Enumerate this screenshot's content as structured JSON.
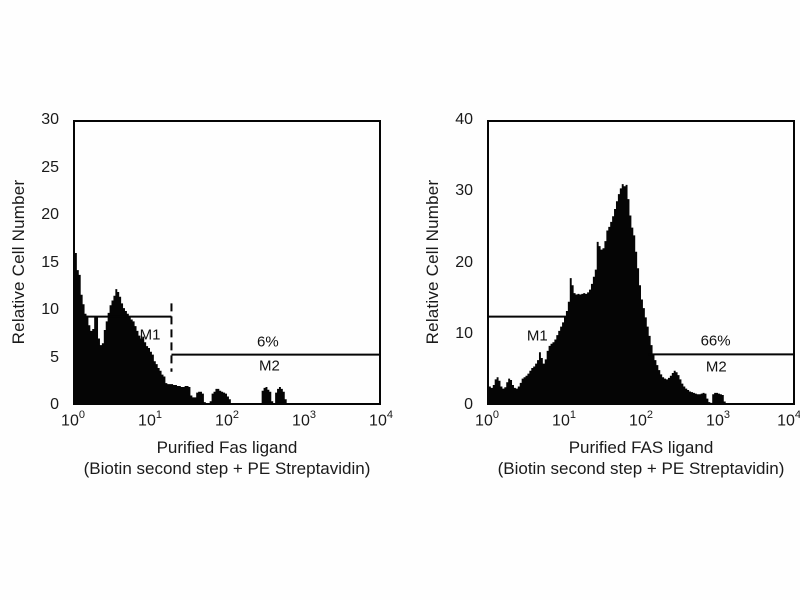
{
  "figure": {
    "background": "#ffffff",
    "ink": "#050505",
    "description": "Two flow cytometry histograms of purified Fas ligand staining (biotin second step + PE streptavidin), with M1/M2 gates"
  },
  "chart_data": [
    {
      "type": "histogram",
      "panel": "left",
      "ylabel": "Relative Cell Number",
      "xlabel_line1": "Purified Fas ligand",
      "xlabel_line2": "(Biotin second step + PE Streptavidin)",
      "x_scale": "log10",
      "x_range": [
        1,
        10000
      ],
      "ylim": [
        0,
        30
      ],
      "grid": false,
      "y_ticks": [
        "30",
        "25",
        "20",
        "15",
        "10",
        "5",
        "0"
      ],
      "x_ticks": [
        {
          "base": "10",
          "exp": "0"
        },
        {
          "base": "10",
          "exp": "1"
        },
        {
          "base": "10",
          "exp": "2"
        },
        {
          "base": "10",
          "exp": "3"
        },
        {
          "base": "10",
          "exp": "4"
        }
      ],
      "bins_per_decade": 40,
      "values": [
        25,
        16,
        14.2,
        13.7,
        11.6,
        10.6,
        9.6,
        9.4,
        8.4,
        7.8,
        8.0,
        9.3,
        9.3,
        7.0,
        6.3,
        6.5,
        7.9,
        8.8,
        9.7,
        10.5,
        11.0,
        11.5,
        12.2,
        11.9,
        11.4,
        10.7,
        10.2,
        9.9,
        9.6,
        9.3,
        9.0,
        8.8,
        8.3,
        7.8,
        7.3,
        7.0,
        7.2,
        6.6,
        6.2,
        6.0,
        5.6,
        5.3,
        4.6,
        4.3,
        3.9,
        3.6,
        3.2,
        3.0,
        2.3,
        2.2,
        2.2,
        2.2,
        2.1,
        2.1,
        2.0,
        2.0,
        1.9,
        1.9,
        2.0,
        2.0,
        1.9,
        1.0,
        0.8,
        0.8,
        1.3,
        1.4,
        1.4,
        1.2,
        0.3,
        0.2,
        0.2,
        0.4,
        1.2,
        1.4,
        1.7,
        1.7,
        1.5,
        1.4,
        1.3,
        1.2,
        0.9,
        0.6,
        0,
        0,
        0,
        0,
        0,
        0,
        0,
        0,
        0,
        0,
        0,
        0,
        0,
        0,
        0,
        0,
        1.5,
        1.8,
        1.9,
        1.6,
        1.4,
        0.4,
        0.2,
        1.3,
        1.7,
        1.9,
        1.7,
        1.4,
        0.6,
        0,
        0,
        0,
        0,
        0,
        0,
        0,
        0,
        0,
        0,
        0,
        0,
        0,
        0,
        0,
        0,
        0,
        0,
        0,
        0,
        0,
        0,
        0,
        0,
        0,
        0,
        0,
        0,
        0,
        0,
        0,
        0,
        0,
        0,
        0,
        0,
        0,
        0,
        0,
        0,
        0,
        0,
        0,
        0,
        0,
        0,
        0,
        0,
        0
      ],
      "gates": {
        "m1": {
          "label": "M1",
          "y": 9.3,
          "x_start": 1.4,
          "x_end": 19,
          "label_at": [
            10,
            7.4
          ]
        },
        "m2": {
          "label": "M2",
          "percent": "6%",
          "y": 5.3,
          "x_start": 19,
          "x_end": 10000,
          "percent_at": [
            340,
            6.6
          ],
          "label_at": [
            355,
            4.1
          ]
        },
        "divider": {
          "x": 19,
          "y_top": 10.7,
          "y_bottom": 3.5,
          "style": "dashed"
        }
      }
    },
    {
      "type": "histogram",
      "panel": "right",
      "ylabel": "Relative Cell Number",
      "xlabel_line1": "Purified FAS ligand",
      "xlabel_line2": "(Biotin second step + PE Streptavidin)",
      "x_scale": "log10",
      "x_range": [
        1,
        10000
      ],
      "ylim": [
        0,
        40
      ],
      "grid": false,
      "y_ticks": [
        "40",
        "30",
        "20",
        "10",
        "0"
      ],
      "x_ticks": [
        {
          "base": "10",
          "exp": "0"
        },
        {
          "base": "10",
          "exp": "1"
        },
        {
          "base": "10",
          "exp": "2"
        },
        {
          "base": "10",
          "exp": "3"
        },
        {
          "base": "10",
          "exp": "4"
        }
      ],
      "bins_per_decade": 40,
      "values": [
        8.2,
        2.6,
        2.4,
        2.8,
        3.6,
        3.9,
        3.4,
        2.6,
        2.3,
        2.5,
        3.2,
        3.7,
        3.5,
        2.8,
        2.4,
        2.3,
        2.6,
        3.1,
        3.7,
        3.9,
        4.1,
        4.4,
        4.8,
        5.2,
        5.4,
        5.8,
        6.3,
        7.4,
        6.6,
        5.8,
        6.4,
        7.6,
        8.3,
        8.6,
        8.8,
        9.2,
        9.8,
        10.4,
        11.0,
        11.6,
        12.3,
        13.2,
        14.5,
        17.8,
        16.8,
        15.7,
        15.5,
        15.6,
        15.5,
        15.6,
        15.7,
        15.6,
        15.8,
        16.2,
        17.0,
        18.0,
        19.0,
        22.9,
        22.3,
        21.8,
        22.0,
        23.0,
        24.5,
        25.0,
        25.7,
        26.5,
        27.5,
        28.6,
        29.6,
        30.4,
        31.0,
        30.7,
        30.9,
        28.9,
        26.6,
        24.9,
        23.8,
        21.5,
        19.2,
        16.8,
        14.8,
        13.6,
        12.3,
        11.0,
        9.7,
        8.4,
        7.2,
        6.3,
        5.6,
        4.9,
        4.3,
        3.9,
        3.7,
        3.6,
        3.8,
        4.1,
        4.5,
        4.8,
        4.6,
        4.2,
        3.6,
        3.0,
        2.6,
        2.3,
        2.1,
        1.9,
        1.8,
        1.7,
        1.6,
        1.5,
        1.5,
        1.6,
        1.7,
        1.6,
        0.9,
        0.4,
        0.3,
        1.5,
        1.7,
        1.7,
        1.6,
        1.5,
        1.4,
        0.5,
        0,
        0,
        0,
        0,
        0,
        0,
        0,
        0,
        0,
        0,
        0,
        0,
        0,
        0,
        0,
        0,
        0,
        0,
        0,
        0,
        0,
        0,
        0,
        0,
        0,
        0,
        0,
        0,
        0,
        0,
        0,
        0,
        0,
        0,
        0,
        0
      ],
      "gates": {
        "m1": {
          "label": "M1",
          "y": 12.4,
          "x_start": 1,
          "x_end": 11.5,
          "label_at": [
            4.5,
            9.7
          ]
        },
        "m2": {
          "label": "M2",
          "percent": "66%",
          "y": 7.1,
          "x_start": 125,
          "x_end": 10000,
          "percent_at": [
            930,
            9.0
          ],
          "label_at": [
            950,
            5.3
          ]
        }
      }
    }
  ]
}
